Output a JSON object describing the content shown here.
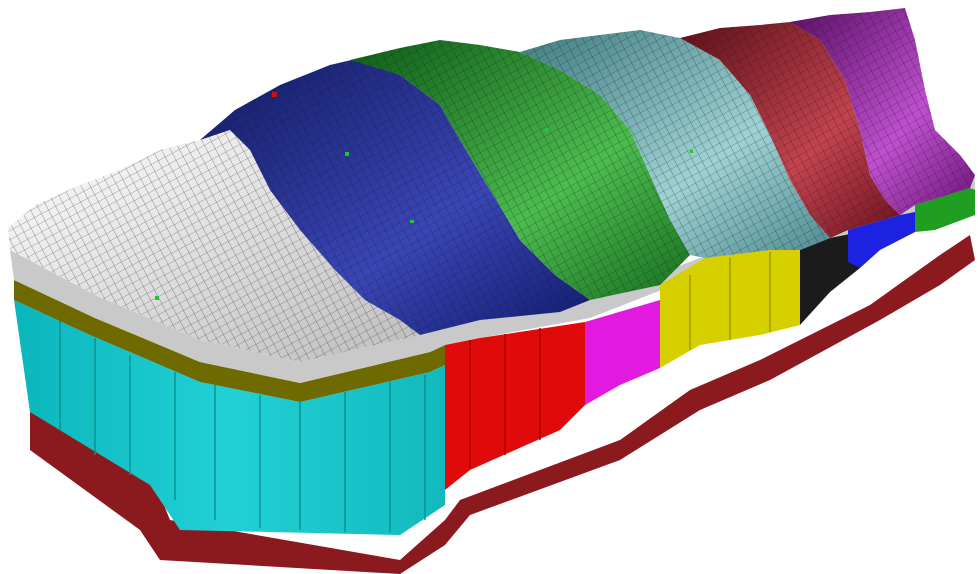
{
  "scene": {
    "title": "",
    "description_visible_text": "",
    "colors": {
      "background": "#ffffff",
      "base_dark_red": "#8b1a1f",
      "olive_layer": "#6f6a00",
      "gray_cap": "#c9c9c9",
      "cyan_zone": "#16c7cc",
      "red_zone": "#e00a0a",
      "magenta_zone": "#e21ae0",
      "yellow_zone": "#d7d000",
      "black_zone": "#1b1b1b",
      "blue_zone": "#1c22e0",
      "green_zone": "#1f9e22",
      "surface_white": "#f2f2f2",
      "surface_navy": "#1d2a8a",
      "surface_green": "#2f9a3a",
      "surface_teal": "#6aa5aa",
      "surface_maroon": "#9a2330",
      "surface_purple": "#9a2ea6",
      "mesh_line": "#1a1a1a"
    },
    "surface_zones": [
      {
        "name": "white-zone",
        "color_key": "surface_white"
      },
      {
        "name": "navy-zone",
        "color_key": "surface_navy"
      },
      {
        "name": "green-zone",
        "color_key": "surface_green"
      },
      {
        "name": "teal-zone",
        "color_key": "surface_teal"
      },
      {
        "name": "maroon-zone",
        "color_key": "surface_maroon"
      },
      {
        "name": "purple-zone",
        "color_key": "surface_purple"
      }
    ],
    "side_zones": [
      {
        "name": "cyan-side",
        "color_key": "cyan_zone"
      },
      {
        "name": "red-side",
        "color_key": "red_zone"
      },
      {
        "name": "magenta-side",
        "color_key": "magenta_zone"
      },
      {
        "name": "yellow-side",
        "color_key": "yellow_zone"
      },
      {
        "name": "black-side",
        "color_key": "black_zone"
      },
      {
        "name": "blue-side",
        "color_key": "blue_zone"
      },
      {
        "name": "green-side",
        "color_key": "green_zone"
      }
    ]
  }
}
